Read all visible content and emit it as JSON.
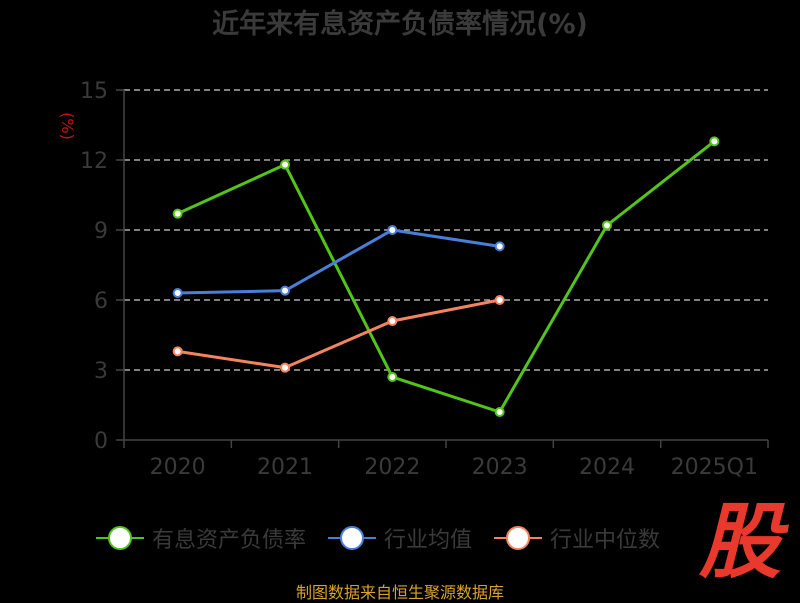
{
  "chart_data": {
    "type": "line",
    "title": "近年来有息资产负债率情况(%)",
    "ylabel": "(%)",
    "xlabel": "",
    "categories": [
      "2020",
      "2021",
      "2022",
      "2023",
      "2024",
      "2025Q1"
    ],
    "ylim": [
      0,
      15
    ],
    "yticks": [
      0,
      3,
      6,
      9,
      12,
      15
    ],
    "grid": true,
    "grid_style": "dashed",
    "legend_position": "bottom",
    "series": [
      {
        "name": "有息资产负债率",
        "color": "#52c41a",
        "values": [
          9.7,
          11.8,
          2.7,
          1.2,
          9.2,
          12.8
        ]
      },
      {
        "name": "行业均值",
        "color": "#4a7fd8",
        "values": [
          6.3,
          6.4,
          9.0,
          8.3,
          null,
          null
        ]
      },
      {
        "name": "行业中位数",
        "color": "#f4845f",
        "values": [
          3.8,
          3.1,
          5.1,
          6.0,
          null,
          null
        ]
      }
    ]
  },
  "watermark": "股",
  "source": "制图数据来自恒生聚源数据库",
  "colors": {
    "axis": "#444444",
    "grid": "#cccccc",
    "tick_text": "#3a3a3a",
    "ylabel": "#cc1111"
  }
}
